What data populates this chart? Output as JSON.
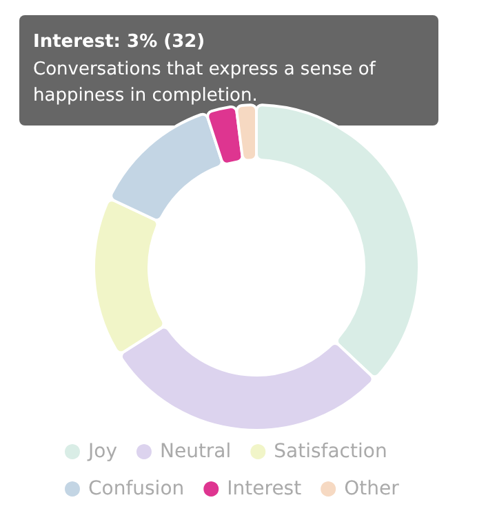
{
  "chart_data": {
    "type": "donut",
    "categories": [
      "Joy",
      "Neutral",
      "Satisfaction",
      "Confusion",
      "Interest",
      "Other"
    ],
    "values": [
      37,
      29,
      16,
      13,
      3,
      2
    ],
    "colors": [
      "#d9ede6",
      "#dcd3ee",
      "#f1f5c8",
      "#c3d5e4",
      "#de3590",
      "#f6d9c2"
    ],
    "annotations": [
      "Interest: 3% (32)",
      "Conversations that express a sense of happiness in completion."
    ],
    "legend": "bottom"
  }
}
